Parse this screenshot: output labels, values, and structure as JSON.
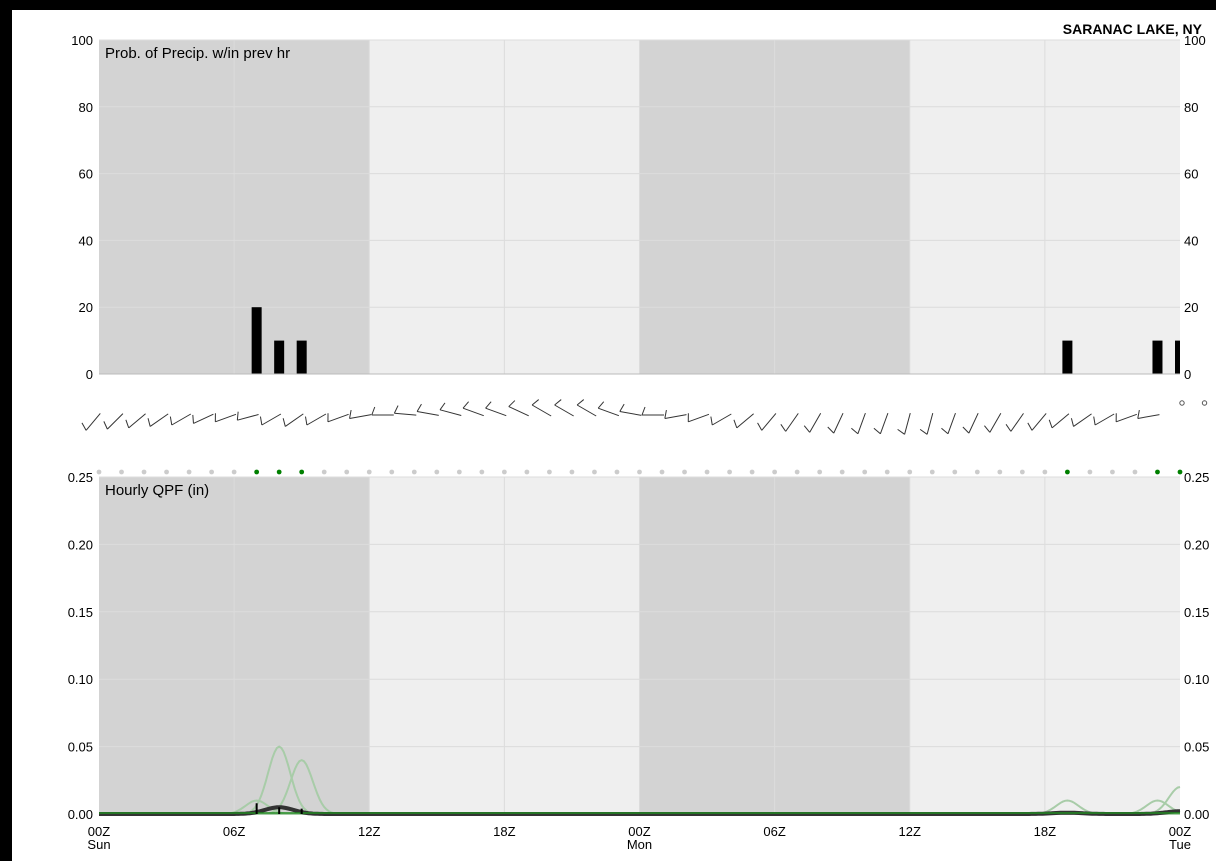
{
  "station": "SARANAC LAKE, NY",
  "colors": {
    "night_shade": "#d3d3d3",
    "day_shade": "#efefef",
    "grid": "#dcdcdc",
    "bar": "#000000",
    "precip_dot": "#008000",
    "dry_dot": "#cccccc",
    "ensemble_line": "#a8cca8",
    "mean_line": "#333333",
    "qpf_marker_green": "#228b22"
  },
  "x_axis": {
    "tick_labels": [
      {
        "hour": 0,
        "time": "00Z",
        "day": "Sun"
      },
      {
        "hour": 6,
        "time": "06Z",
        "day": ""
      },
      {
        "hour": 12,
        "time": "12Z",
        "day": ""
      },
      {
        "hour": 18,
        "time": "18Z",
        "day": ""
      },
      {
        "hour": 24,
        "time": "00Z",
        "day": "Mon"
      },
      {
        "hour": 30,
        "time": "06Z",
        "day": ""
      },
      {
        "hour": 36,
        "time": "12Z",
        "day": ""
      },
      {
        "hour": 42,
        "time": "18Z",
        "day": ""
      },
      {
        "hour": 48,
        "time": "00Z",
        "day": "Tue"
      }
    ],
    "night_periods": [
      [
        0,
        12
      ],
      [
        24,
        36
      ]
    ]
  },
  "chart_data": [
    {
      "type": "bar",
      "title": "Prob. of Precip. w/in prev hr",
      "ylim": [
        0,
        100
      ],
      "yticks": [
        "0",
        "20",
        "40",
        "60",
        "80",
        "100"
      ],
      "x_hours": [
        7,
        8,
        9,
        43,
        47,
        48
      ],
      "values": [
        20,
        10,
        10,
        10,
        10,
        10
      ],
      "grid": true
    },
    {
      "type": "line",
      "title": "Hourly QPF (in)",
      "ylim": [
        0,
        0.25
      ],
      "yticks": [
        "0.00",
        "0.05",
        "0.10",
        "0.15",
        "0.20",
        "0.25"
      ],
      "grid": true,
      "ensemble_members": [
        {
          "peaks": [
            [
              8,
              0.05
            ]
          ]
        },
        {
          "peaks": [
            [
              9,
              0.04
            ]
          ]
        },
        {
          "peaks": [
            [
              7,
              0.01
            ]
          ]
        },
        {
          "peaks": [
            [
              43,
              0.01
            ]
          ]
        },
        {
          "peaks": [
            [
              47,
              0.01
            ]
          ]
        },
        {
          "peaks": [
            [
              48,
              0.02
            ]
          ]
        }
      ],
      "mean_peaks": [
        [
          8,
          0.005
        ],
        [
          43,
          0.001
        ],
        [
          48,
          0.002
        ]
      ],
      "qpf_markers": [
        {
          "hour": 7,
          "value": 0.005
        },
        {
          "hour": 8,
          "value": 0.002
        },
        {
          "hour": 9,
          "value": 0.001
        }
      ]
    }
  ],
  "wind_barbs": {
    "directions": [
      220,
      225,
      230,
      235,
      240,
      245,
      250,
      255,
      240,
      235,
      240,
      250,
      260,
      270,
      275,
      280,
      285,
      290,
      290,
      295,
      300,
      300,
      300,
      290,
      280,
      270,
      260,
      250,
      240,
      230,
      220,
      215,
      210,
      205,
      200,
      200,
      195,
      195,
      200,
      205,
      210,
      215,
      220,
      230,
      235,
      240,
      250,
      260,
      0,
      0
    ]
  },
  "precip_indicator": {
    "wet_hours": [
      7,
      8,
      9,
      43,
      47,
      48
    ]
  }
}
